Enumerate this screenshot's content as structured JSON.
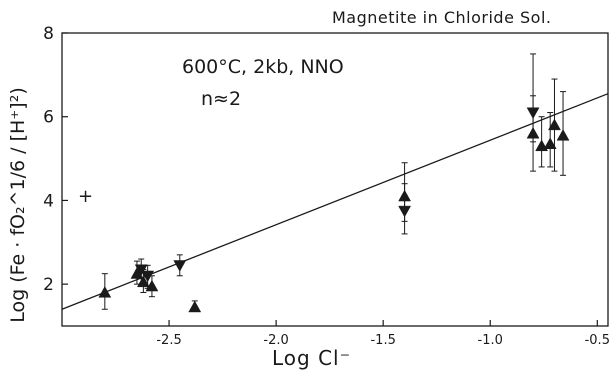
{
  "chart_data": {
    "type": "scatter",
    "title": "Magnetite in Chloride Sol.",
    "xlabel": "Log Cl⁻",
    "ylabel": "Log (Fe · fO₂^1/6 / [H⁺]²)",
    "xlim": [
      -3.0,
      -0.45
    ],
    "ylim": [
      1.0,
      8.0
    ],
    "x_ticks": [
      -2.5,
      -2.0,
      -1.5,
      -1.0,
      -0.5
    ],
    "x_tick_labels": [
      "-2.5",
      "-2.0",
      "-1.5",
      "-1.0",
      "-0.5"
    ],
    "y_ticks": [
      2,
      4,
      6,
      8
    ],
    "y_tick_labels": [
      "2",
      "4",
      "6",
      "8"
    ],
    "grid": false,
    "annotations": [
      "600°C, 2kb, NNO",
      "n≈2"
    ],
    "stray_mark": "+",
    "fit_line": {
      "x": [
        -3.0,
        -0.45
      ],
      "y": [
        1.4,
        6.55
      ]
    },
    "points": [
      {
        "x": -2.8,
        "y": 1.8,
        "marker": "up",
        "err_low": 1.4,
        "err_high": 2.25
      },
      {
        "x": -2.65,
        "y": 2.25,
        "marker": "up",
        "err_low": 2.0,
        "err_high": 2.55
      },
      {
        "x": -2.63,
        "y": 2.35,
        "marker": "down",
        "err_low": 2.0,
        "err_high": 2.6
      },
      {
        "x": -2.62,
        "y": 2.05,
        "marker": "up",
        "err_low": 1.8,
        "err_high": 2.35
      },
      {
        "x": -2.6,
        "y": 2.2,
        "marker": "down",
        "err_low": 1.9,
        "err_high": 2.45
      },
      {
        "x": -2.58,
        "y": 1.95,
        "marker": "up",
        "err_low": 1.7,
        "err_high": 2.2
      },
      {
        "x": -2.45,
        "y": 2.45,
        "marker": "down",
        "err_low": 2.2,
        "err_high": 2.7
      },
      {
        "x": -2.38,
        "y": 1.45,
        "marker": "up",
        "err_low": 1.35,
        "err_high": 1.6
      },
      {
        "x": -1.4,
        "y": 4.1,
        "marker": "up",
        "err_low": 3.5,
        "err_high": 4.9
      },
      {
        "x": -1.4,
        "y": 3.75,
        "marker": "down",
        "err_low": 3.2,
        "err_high": 4.4
      },
      {
        "x": -0.8,
        "y": 6.1,
        "marker": "down",
        "err_low": 5.4,
        "err_high": 7.5
      },
      {
        "x": -0.8,
        "y": 5.6,
        "marker": "up",
        "err_low": 4.7,
        "err_high": 6.5
      },
      {
        "x": -0.76,
        "y": 5.3,
        "marker": "up",
        "err_low": 4.8,
        "err_high": 6.0
      },
      {
        "x": -0.72,
        "y": 5.35,
        "marker": "up",
        "err_low": 4.8,
        "err_high": 6.1
      },
      {
        "x": -0.7,
        "y": 5.8,
        "marker": "up",
        "err_low": 4.7,
        "err_high": 6.9
      },
      {
        "x": -0.66,
        "y": 5.55,
        "marker": "up",
        "err_low": 4.6,
        "err_high": 6.6
      }
    ]
  }
}
